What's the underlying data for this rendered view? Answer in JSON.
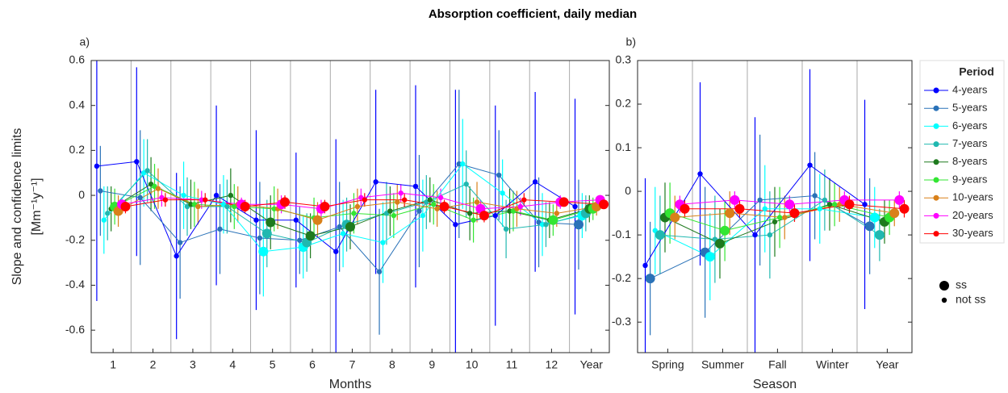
{
  "title": "Absorption coefficient, daily median",
  "legend": {
    "title": "Period",
    "significant": "ss",
    "not_significant": "not ss"
  },
  "chart_data": [
    {
      "type": "errorbar",
      "panel_label": "a)",
      "x_label": "Months",
      "y_label": [
        "Slope and confidence limits",
        "[Mm⁻¹y⁻¹]"
      ],
      "categories": [
        "1",
        "2",
        "3",
        "4",
        "5",
        "6",
        "7",
        "8",
        "9",
        "10",
        "11",
        "12",
        "Year"
      ],
      "ylim": [
        -0.7,
        0.6
      ],
      "yticks": [
        -0.6,
        -0.4,
        -0.2,
        0,
        0.2,
        0.4,
        0.6
      ],
      "category_separators": true,
      "series": [
        {
          "name": "4-years",
          "color": "#0000ff",
          "values": [
            0.13,
            0.15,
            -0.27,
            0,
            -0.11,
            -0.11,
            -0.25,
            0.06,
            0.04,
            -0.13,
            -0.09,
            0.06,
            -0.05
          ],
          "errors": [
            0.6,
            0.42,
            0.37,
            0.4,
            0.4,
            0.3,
            0.5,
            0.41,
            0.45,
            0.6,
            0.49,
            0.4,
            0.48
          ],
          "significant": [
            false,
            false,
            false,
            false,
            false,
            false,
            false,
            false,
            false,
            false,
            false,
            false,
            false
          ]
        },
        {
          "name": "5-years",
          "color": "#2a72b8",
          "values": [
            0.02,
            -0.01,
            -0.21,
            -0.15,
            -0.19,
            -0.2,
            -0.14,
            -0.34,
            -0.07,
            0.14,
            0.09,
            -0.12,
            -0.13
          ],
          "errors": [
            0.2,
            0.3,
            0.25,
            0.2,
            0.25,
            0.15,
            0.2,
            0.28,
            0.25,
            0.33,
            0.2,
            0.2,
            0.2
          ],
          "significant": [
            false,
            false,
            false,
            false,
            false,
            false,
            false,
            false,
            false,
            false,
            false,
            false,
            true
          ]
        },
        {
          "name": "6-years",
          "color": "#00ffff",
          "values": [
            -0.11,
            0.1,
            0,
            -0.04,
            -0.25,
            -0.23,
            -0.17,
            -0.21,
            -0.09,
            0.14,
            0.01,
            -0.13,
            -0.09
          ],
          "errors": [
            0.15,
            0.15,
            0.15,
            0.13,
            0.2,
            0.14,
            0.15,
            0.18,
            0.16,
            0.2,
            0.15,
            0.14,
            0.1
          ],
          "significant": [
            false,
            false,
            false,
            false,
            true,
            true,
            false,
            false,
            false,
            false,
            false,
            false,
            true
          ]
        },
        {
          "name": "7-years",
          "color": "#20b8b0",
          "values": [
            -0.08,
            0.11,
            -0.05,
            -0.05,
            -0.17,
            -0.21,
            -0.13,
            -0.08,
            -0.03,
            0.05,
            -0.15,
            -0.13,
            -0.08
          ],
          "errors": [
            0.12,
            0.14,
            0.13,
            0.12,
            0.15,
            0.13,
            0.12,
            0.14,
            0.12,
            0.15,
            0.13,
            0.1,
            0.08
          ],
          "significant": [
            false,
            false,
            false,
            false,
            true,
            true,
            true,
            false,
            false,
            false,
            false,
            false,
            true
          ]
        },
        {
          "name": "8-years",
          "color": "#1e7a1e",
          "values": [
            -0.06,
            0.05,
            -0.04,
            0,
            -0.12,
            -0.18,
            -0.14,
            -0.07,
            -0.02,
            -0.08,
            -0.07,
            -0.11,
            -0.06
          ],
          "errors": [
            0.1,
            0.12,
            0.11,
            0.12,
            0.12,
            0.1,
            0.1,
            0.11,
            0.1,
            0.12,
            0.1,
            0.08,
            0.06
          ],
          "significant": [
            false,
            false,
            false,
            false,
            true,
            true,
            true,
            false,
            false,
            false,
            false,
            false,
            true
          ]
        },
        {
          "name": "9-years",
          "color": "#33e633",
          "values": [
            -0.05,
            0.04,
            -0.04,
            -0.05,
            -0.06,
            -0.1,
            -0.08,
            -0.09,
            -0.04,
            -0.11,
            -0.07,
            -0.11,
            -0.06
          ],
          "errors": [
            0.08,
            0.1,
            0.1,
            0.1,
            0.1,
            0.09,
            0.09,
            0.1,
            0.09,
            0.1,
            0.09,
            0.07,
            0.05
          ],
          "significant": [
            true,
            false,
            false,
            false,
            false,
            false,
            false,
            false,
            false,
            false,
            false,
            true,
            true
          ]
        },
        {
          "name": "10-years",
          "color": "#d98019",
          "values": [
            -0.07,
            0.03,
            -0.05,
            -0.04,
            -0.06,
            -0.11,
            -0.05,
            -0.03,
            -0.06,
            -0.03,
            -0.06,
            -0.08,
            -0.05
          ],
          "errors": [
            0.07,
            0.09,
            0.08,
            0.08,
            0.09,
            0.08,
            0.08,
            0.08,
            0.08,
            0.09,
            0.08,
            0.06,
            0.04
          ],
          "significant": [
            true,
            false,
            false,
            false,
            false,
            true,
            false,
            false,
            false,
            false,
            false,
            false,
            true
          ]
        },
        {
          "name": "20-years",
          "color": "#ff00ff",
          "values": [
            -0.04,
            -0.01,
            -0.02,
            -0.04,
            -0.04,
            -0.06,
            -0.01,
            0.01,
            -0.01,
            -0.06,
            -0.05,
            -0.03,
            -0.02
          ],
          "errors": [
            0.03,
            0.04,
            0.04,
            0.03,
            0.04,
            0.04,
            0.04,
            0.04,
            0.04,
            0.04,
            0.04,
            0.03,
            0.02
          ],
          "significant": [
            true,
            false,
            false,
            true,
            true,
            true,
            false,
            false,
            false,
            true,
            false,
            true,
            true
          ]
        },
        {
          "name": "30-years",
          "color": "#ff0000",
          "values": [
            -0.05,
            -0.02,
            -0.02,
            -0.05,
            -0.03,
            -0.05,
            -0.02,
            -0.02,
            -0.05,
            -0.09,
            -0.02,
            -0.03,
            -0.04
          ],
          "errors": [
            0.03,
            0.03,
            0.03,
            0.03,
            0.03,
            0.03,
            0.03,
            0.03,
            0.03,
            0.03,
            0.03,
            0.02,
            0.02
          ],
          "significant": [
            true,
            false,
            false,
            true,
            true,
            true,
            false,
            false,
            true,
            true,
            false,
            true,
            true
          ]
        }
      ]
    },
    {
      "type": "errorbar",
      "panel_label": "b)",
      "x_label": "Season",
      "categories": [
        "Spring",
        "Summer",
        "Fall",
        "Winter",
        "Year"
      ],
      "ylim": [
        -0.37,
        0.3
      ],
      "yticks": [
        -0.3,
        -0.2,
        -0.1,
        0,
        0.1,
        0.2,
        0.3
      ],
      "category_separators": true,
      "series": [
        {
          "name": "4-years",
          "color": "#0000ff",
          "values": [
            -0.17,
            0.04,
            -0.1,
            0.06,
            -0.03
          ],
          "errors": [
            0.2,
            0.21,
            0.27,
            0.22,
            0.24
          ],
          "significant": [
            false,
            false,
            false,
            false,
            false
          ]
        },
        {
          "name": "5-years",
          "color": "#2a72b8",
          "values": [
            -0.2,
            -0.14,
            -0.02,
            -0.01,
            -0.08
          ],
          "errors": [
            0.13,
            0.15,
            0.15,
            0.1,
            0.11
          ],
          "significant": [
            true,
            true,
            false,
            false,
            true
          ]
        },
        {
          "name": "6-years",
          "color": "#00ffff",
          "values": [
            -0.09,
            -0.15,
            -0.04,
            -0.04,
            -0.06
          ],
          "errors": [
            0.1,
            0.1,
            0.1,
            0.08,
            0.07
          ],
          "significant": [
            false,
            true,
            false,
            false,
            true
          ]
        },
        {
          "name": "7-years",
          "color": "#20b8b0",
          "values": [
            -0.1,
            -0.11,
            -0.1,
            -0.02,
            -0.1
          ],
          "errors": [
            0.09,
            0.1,
            0.1,
            0.07,
            0.06
          ],
          "significant": [
            true,
            false,
            false,
            false,
            true
          ]
        },
        {
          "name": "8-years",
          "color": "#1e7a1e",
          "values": [
            -0.06,
            -0.12,
            -0.07,
            -0.03,
            -0.07
          ],
          "errors": [
            0.08,
            0.08,
            0.08,
            0.06,
            0.05
          ],
          "significant": [
            true,
            true,
            false,
            false,
            true
          ]
        },
        {
          "name": "9-years",
          "color": "#33e633",
          "values": [
            -0.05,
            -0.09,
            -0.06,
            -0.03,
            -0.06
          ],
          "errors": [
            0.07,
            0.07,
            0.07,
            0.05,
            0.04
          ],
          "significant": [
            true,
            true,
            false,
            false,
            true
          ]
        },
        {
          "name": "10-years",
          "color": "#d98019",
          "values": [
            -0.06,
            -0.05,
            -0.06,
            -0.03,
            -0.05
          ],
          "errors": [
            0.05,
            0.05,
            0.05,
            0.04,
            0.03
          ],
          "significant": [
            true,
            true,
            false,
            false,
            true
          ]
        },
        {
          "name": "20-years",
          "color": "#ff00ff",
          "values": [
            -0.03,
            -0.02,
            -0.03,
            -0.02,
            -0.02
          ],
          "errors": [
            0.02,
            0.02,
            0.02,
            0.02,
            0.02
          ],
          "significant": [
            true,
            true,
            true,
            true,
            true
          ]
        },
        {
          "name": "30-years",
          "color": "#ff0000",
          "values": [
            -0.04,
            -0.04,
            -0.05,
            -0.03,
            -0.04
          ],
          "errors": [
            0.02,
            0.02,
            0.02,
            0.02,
            0.02
          ],
          "significant": [
            true,
            true,
            true,
            true,
            true
          ]
        }
      ]
    }
  ]
}
